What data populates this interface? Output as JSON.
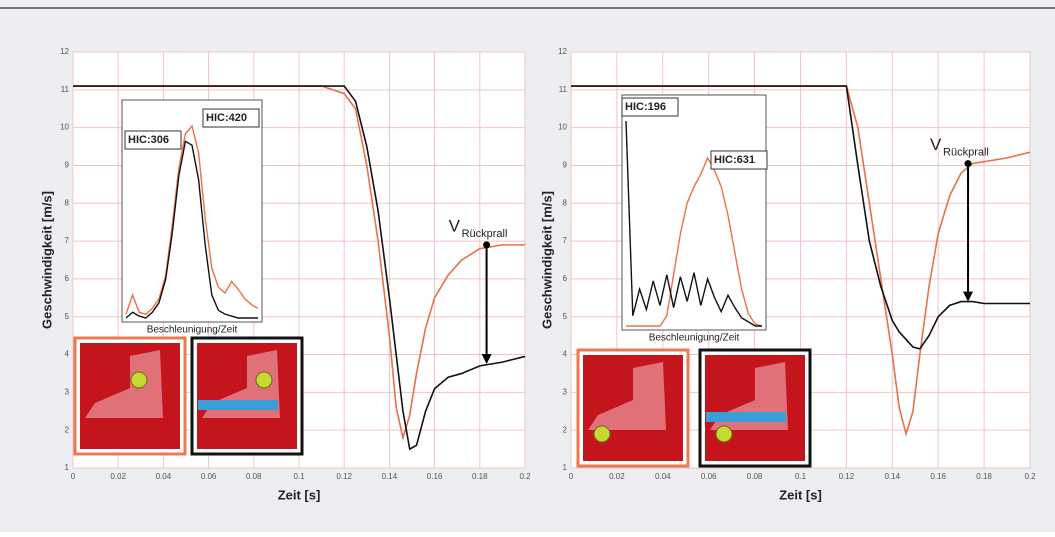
{
  "chart_data": [
    {
      "type": "line",
      "xlabel": "Zeit [s]",
      "ylabel": "Geschwindigkeit [m/s]",
      "xlim": [
        0,
        0.2
      ],
      "ylim": [
        1,
        12
      ],
      "grid": true,
      "xticks": [
        0,
        0.02,
        0.04,
        0.06,
        0.08,
        0.1,
        0.12,
        0.14,
        0.16,
        0.18,
        0.2
      ],
      "yticks": [
        1,
        2,
        3,
        4,
        5,
        6,
        7,
        8,
        9,
        10,
        11,
        12
      ],
      "x": [
        0,
        0.11,
        0.115,
        0.12,
        0.125,
        0.13,
        0.135,
        0.14,
        0.143,
        0.146,
        0.149,
        0.152,
        0.156,
        0.16,
        0.166,
        0.172,
        0.18,
        0.19,
        0.2
      ],
      "series": [
        {
          "color": "#e8704a",
          "values": [
            11.1,
            11.1,
            11.0,
            10.9,
            10.5,
            9.0,
            7.0,
            4.5,
            2.6,
            1.8,
            2.4,
            3.5,
            4.7,
            5.5,
            6.1,
            6.5,
            6.8,
            6.9,
            6.9
          ]
        },
        {
          "color": "#111111",
          "values": [
            11.1,
            11.1,
            11.1,
            11.1,
            10.7,
            9.5,
            7.8,
            5.5,
            4.0,
            2.5,
            1.5,
            1.6,
            2.5,
            3.1,
            3.4,
            3.5,
            3.7,
            3.8,
            3.95
          ]
        }
      ],
      "arrow": {
        "x": 0.183,
        "from": 6.9,
        "to": 3.75
      },
      "annotation": {
        "main": "V",
        "sub": "Rückprall"
      },
      "inset": {
        "label": "Beschleunigung/Zeit",
        "hic": [
          "HIC:306",
          "HIC:420"
        ],
        "series": [
          {
            "color": "#e8704a",
            "values": [
              0.2,
              1.2,
              0.3,
              0.2,
              0.5,
              1.0,
              2.2,
              4.8,
              7.8,
              9.6,
              10.0,
              8.6,
              5.2,
              2.6,
              1.6,
              1.3,
              1.9,
              1.5,
              1.0,
              0.7,
              0.5
            ]
          },
          {
            "color": "#111111",
            "values": [
              0.0,
              0.3,
              0.1,
              0.0,
              0.3,
              0.8,
              2.0,
              4.4,
              7.4,
              9.2,
              9.0,
              7.2,
              3.8,
              1.2,
              0.4,
              0.2,
              0.1,
              0.0,
              0.0,
              0.0,
              0.0
            ]
          }
        ]
      }
    },
    {
      "type": "line",
      "xlabel": "Zeit [s]",
      "ylabel": "Geschwindigkeit [m/s]",
      "xlim": [
        0,
        0.2
      ],
      "ylim": [
        1,
        12
      ],
      "grid": true,
      "xticks": [
        0,
        0.02,
        0.04,
        0.06,
        0.08,
        0.1,
        0.12,
        0.14,
        0.16,
        0.18,
        0.2
      ],
      "yticks": [
        1,
        2,
        3,
        4,
        5,
        6,
        7,
        8,
        9,
        10,
        11,
        12
      ],
      "x": [
        0,
        0.12,
        0.125,
        0.13,
        0.135,
        0.14,
        0.143,
        0.146,
        0.149,
        0.152,
        0.156,
        0.16,
        0.165,
        0.17,
        0.175,
        0.18,
        0.19,
        0.2
      ],
      "series": [
        {
          "color": "#e8704a",
          "values": [
            11.1,
            11.1,
            10.0,
            8.0,
            6.0,
            4.0,
            2.6,
            1.9,
            2.5,
            4.0,
            5.8,
            7.2,
            8.2,
            8.8,
            9.05,
            9.1,
            9.2,
            9.35
          ]
        },
        {
          "color": "#111111",
          "values": [
            11.1,
            11.1,
            9.0,
            7.0,
            5.8,
            4.9,
            4.6,
            4.4,
            4.2,
            4.15,
            4.5,
            5.0,
            5.3,
            5.4,
            5.4,
            5.35,
            5.35,
            5.35
          ]
        }
      ],
      "arrow": {
        "x": 0.173,
        "from": 9.05,
        "to": 5.4
      },
      "annotation": {
        "main": "V",
        "sub": "Rückprall"
      },
      "inset": {
        "label": "Beschleunigung/Zeit",
        "hic": [
          "HIC:196",
          "HIC:631"
        ],
        "series": [
          {
            "color": "#e8704a",
            "values": [
              0.0,
              0.0,
              0.0,
              0.0,
              0.0,
              0.0,
              0.5,
              2.5,
              4.5,
              6.0,
              6.8,
              7.4,
              8.2,
              7.6,
              6.8,
              5.4,
              3.6,
              1.8,
              0.6,
              0.1,
              0.0
            ]
          },
          {
            "color": "#111111",
            "values": [
              10.0,
              0.5,
              1.8,
              0.8,
              2.2,
              1.0,
              2.5,
              0.9,
              2.4,
              1.2,
              2.6,
              1.0,
              2.3,
              1.4,
              0.7,
              1.5,
              0.9,
              0.4,
              0.2,
              0.0,
              0.0
            ]
          }
        ]
      }
    }
  ]
}
